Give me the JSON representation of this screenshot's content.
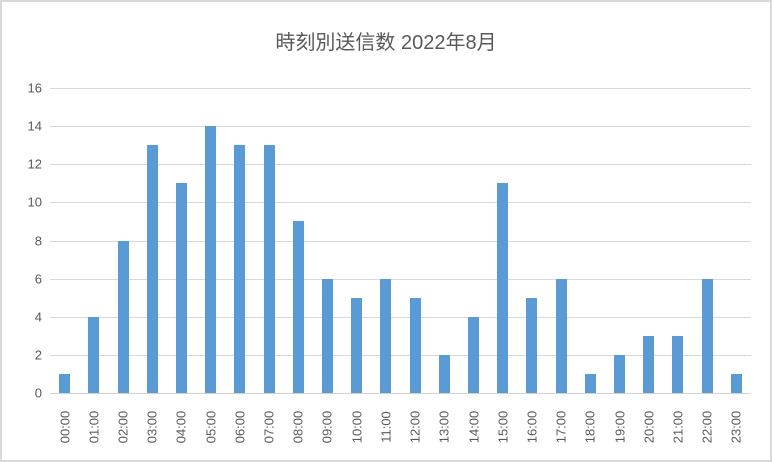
{
  "chart_data": {
    "type": "bar",
    "title": "時刻別送信数 2022年8月",
    "categories": [
      "00:00",
      "01:00",
      "02:00",
      "03:00",
      "04:00",
      "05:00",
      "06:00",
      "07:00",
      "08:00",
      "09:00",
      "10:00",
      "11:00",
      "12:00",
      "13:00",
      "14:00",
      "15:00",
      "16:00",
      "17:00",
      "18:00",
      "19:00",
      "20:00",
      "21:00",
      "22:00",
      "23:00"
    ],
    "values": [
      1,
      4,
      8,
      13,
      11,
      14,
      13,
      13,
      9,
      6,
      5,
      6,
      5,
      2,
      4,
      11,
      5,
      6,
      1,
      2,
      3,
      3,
      6,
      1
    ],
    "xlabel": "",
    "ylabel": "",
    "ylim": [
      0,
      16
    ],
    "ytick_step": 2,
    "yticks": [
      0,
      2,
      4,
      6,
      8,
      10,
      12,
      14,
      16
    ],
    "grid": true,
    "legend_position": "none",
    "x_label_rotation_degrees": 90,
    "colors": {
      "bar": "#5b9bd5",
      "gridline": "#d9d9d9",
      "text": "#595959",
      "chart_border": "#d9d9d9",
      "background": "#ffffff"
    }
  }
}
